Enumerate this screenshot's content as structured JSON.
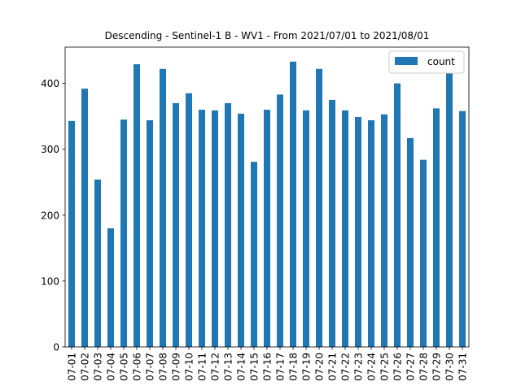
{
  "chart_data": {
    "type": "bar",
    "title": "Descending - Sentinel-1 B - WV1 - From 2021/07/01 to 2021/08/01",
    "xlabel": "",
    "ylabel": "",
    "categories": [
      "07-01",
      "07-02",
      "07-03",
      "07-04",
      "07-05",
      "07-06",
      "07-07",
      "07-08",
      "07-09",
      "07-10",
      "07-11",
      "07-12",
      "07-13",
      "07-14",
      "07-15",
      "07-16",
      "07-17",
      "07-18",
      "07-19",
      "07-20",
      "07-21",
      "07-22",
      "07-23",
      "07-24",
      "07-25",
      "07-26",
      "07-27",
      "07-28",
      "07-29",
      "07-30",
      "07-31"
    ],
    "series": [
      {
        "name": "count",
        "color": "#1f77b4",
        "values": [
          343,
          392,
          254,
          180,
          345,
          429,
          344,
          422,
          370,
          385,
          360,
          359,
          370,
          354,
          281,
          360,
          383,
          433,
          359,
          422,
          375,
          359,
          349,
          344,
          353,
          400,
          317,
          284,
          362,
          415,
          358
        ]
      }
    ],
    "ylim": [
      0,
      455
    ],
    "yticks": [
      0,
      100,
      200,
      300,
      400
    ],
    "legend": {
      "position": "top-right",
      "entries": [
        "count"
      ]
    },
    "grid": false
  }
}
